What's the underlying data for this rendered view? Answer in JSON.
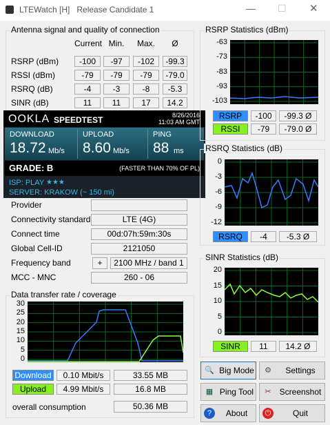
{
  "window": {
    "title": "LTEWatch [H]   Release Candidate 1"
  },
  "antenna": {
    "title": "Antenna signal and quality of connection",
    "headers": [
      "Current",
      "Min.",
      "Max.",
      "Ø"
    ],
    "rows": [
      {
        "label": "RSRP (dBm)",
        "values": [
          "-100",
          "-97",
          "-102",
          "-99.3"
        ]
      },
      {
        "label": "RSSI (dBm)",
        "values": [
          "-79",
          "-79",
          "-79",
          "-79.0"
        ]
      },
      {
        "label": "RSRQ (dB)",
        "values": [
          "-4",
          "-3",
          "-8",
          "-5.3"
        ]
      },
      {
        "label": "SINR (dB)",
        "values": [
          "11",
          "11",
          "17",
          "14.2"
        ]
      }
    ]
  },
  "speedtest": {
    "brand": "OOKLA",
    "product": "SPEEDTEST",
    "date": "8/26/2016",
    "time": "11:03 AM GMT",
    "download": {
      "label": "DOWNLOAD",
      "value": "18.72",
      "unit": "Mb/s"
    },
    "upload": {
      "label": "UPLOAD",
      "value": "8.60",
      "unit": "Mb/s"
    },
    "ping": {
      "label": "PING",
      "value": "88",
      "unit": "ms"
    },
    "grade": "GRADE: B",
    "comparison": "(FASTER THAN 70% OF PL)",
    "isp": "ISP: PLAY",
    "isp_rating": "★★★",
    "server": "SERVER: KRAKOW (~ 150 mi)"
  },
  "info": {
    "rows": [
      {
        "label": "Provider"
      },
      {
        "label": "Connectivity standard",
        "value": "LTE (4G)"
      },
      {
        "label": "Connect time",
        "value": "00d:07h:59m:30s"
      },
      {
        "label": "Global Cell-ID",
        "value": "2121050"
      },
      {
        "label": "Frequency band",
        "button": "+",
        "value": "2100 MHz / band 1"
      },
      {
        "label": "MCC - MNC",
        "value": "260 - 06"
      }
    ]
  },
  "transfer": {
    "title": "Data transfer rate / coverage",
    "yticks": [
      30,
      25,
      20,
      15,
      10,
      5,
      0
    ],
    "rows": [
      {
        "label": "Download",
        "rate": "0.10 Mbit/s",
        "total": "33.55 MB"
      },
      {
        "label": "Upload",
        "rate": "4.99 Mbit/s",
        "total": "16.8 MB"
      }
    ],
    "consumption": {
      "label": "overall consumption",
      "value": "50.36 MB"
    }
  },
  "stats": [
    {
      "title": "RSRP Statistics (dBm)",
      "yticks": [
        -63,
        -73,
        -83,
        -93,
        -103
      ],
      "rows": [
        {
          "label": "RSRP",
          "current": "-100",
          "average": "-99.3 Ø"
        },
        {
          "label": "RSSI",
          "current": "-79",
          "average": "-79.0 Ø"
        }
      ]
    },
    {
      "title": "RSRQ Statistics (dB)",
      "yticks": [
        0,
        -3,
        -6,
        -9,
        -12
      ],
      "rows": [
        {
          "label": "RSRQ",
          "current": "-4",
          "average": "-5.3 Ø"
        }
      ]
    },
    {
      "title": "SINR Statistics (dB)",
      "yticks": [
        20,
        15,
        10,
        5,
        0
      ],
      "rows": [
        {
          "label": "SINR",
          "current": "11",
          "average": "14.2 Ø"
        }
      ]
    }
  ],
  "buttons": [
    "Big Mode",
    "Settings",
    "Ping Tool",
    "Screenshot",
    "About",
    "Quit"
  ]
}
